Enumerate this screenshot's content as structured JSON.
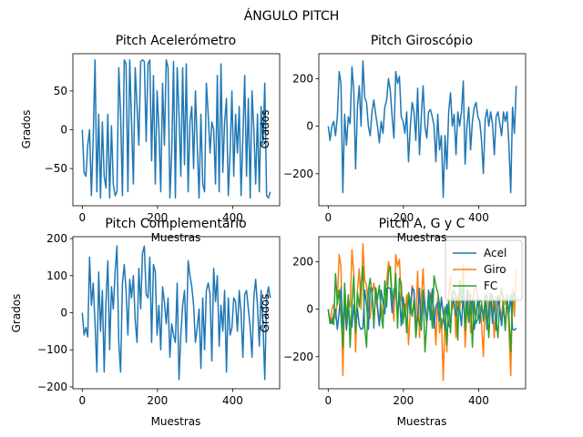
{
  "figure": {
    "suptitle": "ÁNGULO PITCH"
  },
  "colors": {
    "acel": "#1f77b4",
    "giro": "#ff7f0e",
    "fc": "#2ca02c"
  },
  "chart_data": [
    {
      "type": "line",
      "title": "Pitch Acelerómetro",
      "xlabel": "Muestras",
      "ylabel": "Grados",
      "xlim": [
        -25,
        525
      ],
      "ylim": [
        -98,
        98
      ],
      "xticks": [
        0,
        200,
        400
      ],
      "yticks": [
        -50,
        0,
        50
      ],
      "series": [
        {
          "color": "#1f77b4",
          "y": [
            0,
            -55,
            -60,
            -20,
            0,
            -85,
            -10,
            90,
            -80,
            20,
            -88,
            10,
            -60,
            -75,
            20,
            -88,
            5,
            -70,
            -85,
            -80,
            80,
            20,
            -85,
            90,
            85,
            -80,
            90,
            10,
            -70,
            80,
            30,
            -20,
            88,
            90,
            88,
            -15,
            85,
            90,
            -40,
            70,
            -70,
            50,
            0,
            -80,
            60,
            -20,
            90,
            80,
            -88,
            -30,
            88,
            -88,
            80,
            20,
            -60,
            80,
            -45,
            85,
            -80,
            10,
            30,
            -50,
            50,
            -20,
            -88,
            20,
            -70,
            -80,
            60,
            20,
            -30,
            10,
            0,
            -70,
            70,
            -80,
            85,
            -55,
            10,
            40,
            -85,
            -30,
            50,
            -60,
            20,
            -30,
            30,
            -85,
            -10,
            70,
            -60,
            40,
            -88,
            50,
            0,
            -70,
            20,
            -80,
            30,
            -20,
            60,
            -85,
            -88,
            -80
          ]
        }
      ]
    },
    {
      "type": "line",
      "title": "Pitch Giroscópio",
      "xlabel": "Muestras",
      "ylabel": "Grados",
      "xlim": [
        -25,
        525
      ],
      "ylim": [
        -335,
        305
      ],
      "xticks": [
        0,
        200,
        400
      ],
      "yticks": [
        -200,
        0,
        200
      ],
      "series": [
        {
          "color": "#1f77b4",
          "y": [
            0,
            -60,
            0,
            20,
            -40,
            40,
            230,
            180,
            -280,
            50,
            -80,
            40,
            10,
            250,
            150,
            -180,
            80,
            170,
            0,
            275,
            120,
            100,
            0,
            -40,
            60,
            110,
            50,
            0,
            -70,
            20,
            -30,
            80,
            110,
            200,
            150,
            40,
            -50,
            230,
            180,
            210,
            40,
            20,
            -30,
            60,
            -150,
            0,
            100,
            60,
            -60,
            160,
            -120,
            40,
            170,
            0,
            -50,
            60,
            70,
            40,
            0,
            -150,
            50,
            -100,
            -40,
            -300,
            -40,
            -180,
            60,
            140,
            0,
            50,
            -120,
            60,
            0,
            60,
            190,
            -160,
            0,
            80,
            -100,
            20,
            80,
            100,
            40,
            20,
            -60,
            -200,
            30,
            70,
            0,
            60,
            10,
            -120,
            40,
            60,
            10,
            -40,
            60,
            20,
            60,
            -80,
            -280,
            80,
            -30,
            170
          ]
        }
      ]
    },
    {
      "type": "line",
      "title": "Pitch Complementario",
      "xlabel": "Muestras",
      "ylabel": "Grados",
      "xlim": [
        -25,
        525
      ],
      "ylim": [
        -205,
        205
      ],
      "xticks": [
        0,
        200,
        400
      ],
      "yticks": [
        -200,
        -100,
        0,
        100,
        200
      ],
      "series": [
        {
          "color": "#1f77b4",
          "y": [
            0,
            -60,
            -40,
            -65,
            150,
            20,
            80,
            -30,
            -160,
            110,
            -50,
            60,
            -160,
            30,
            140,
            -100,
            70,
            10,
            110,
            180,
            -80,
            -160,
            80,
            130,
            60,
            -60,
            90,
            40,
            100,
            -20,
            -80,
            120,
            10,
            160,
            180,
            50,
            40,
            150,
            -80,
            130,
            110,
            -60,
            20,
            -100,
            70,
            30,
            -30,
            40,
            -120,
            -30,
            -60,
            -80,
            80,
            -180,
            -60,
            20,
            60,
            -80,
            140,
            100,
            70,
            20,
            -80,
            -40,
            10,
            -150,
            40,
            -100,
            60,
            80,
            50,
            -130,
            120,
            30,
            100,
            -90,
            20,
            -50,
            60,
            -160,
            40,
            -60,
            -40,
            40,
            30,
            -50,
            60,
            0,
            -120,
            50,
            60,
            10,
            -40,
            -120,
            40,
            90,
            20,
            -90,
            60,
            -30,
            -180,
            40,
            70,
            40
          ]
        }
      ]
    },
    {
      "type": "line",
      "title": "Pitch A, G y C",
      "xlabel": "Muestras",
      "ylabel": "Grados",
      "xlim": [
        -25,
        525
      ],
      "ylim": [
        -335,
        305
      ],
      "xticks": [
        0,
        200,
        400
      ],
      "yticks": [
        -200,
        0,
        200
      ],
      "legend": "top-right",
      "series": [
        {
          "name": "Giro",
          "color": "#ff7f0e",
          "y": [
            0,
            -60,
            0,
            20,
            -40,
            40,
            230,
            180,
            -280,
            50,
            -80,
            40,
            10,
            250,
            150,
            -180,
            80,
            170,
            0,
            275,
            120,
            100,
            0,
            -40,
            60,
            110,
            50,
            0,
            -70,
            20,
            -30,
            80,
            110,
            200,
            150,
            40,
            -50,
            230,
            180,
            210,
            40,
            20,
            -30,
            60,
            -150,
            0,
            100,
            60,
            -60,
            160,
            -120,
            40,
            170,
            0,
            -50,
            60,
            70,
            40,
            0,
            -150,
            50,
            -100,
            -40,
            -300,
            -40,
            -180,
            60,
            140,
            0,
            50,
            -120,
            60,
            0,
            60,
            190,
            -160,
            0,
            80,
            -100,
            20,
            80,
            100,
            40,
            20,
            -60,
            -200,
            30,
            70,
            0,
            60,
            10,
            -120,
            40,
            60,
            10,
            -40,
            60,
            20,
            60,
            -80,
            -280,
            80,
            -30,
            170
          ]
        },
        {
          "name": "Acel",
          "color": "#1f77b4",
          "y": [
            0,
            -55,
            -60,
            -20,
            0,
            -85,
            -10,
            90,
            -80,
            20,
            -88,
            10,
            -60,
            -75,
            20,
            -88,
            5,
            -70,
            -85,
            -80,
            80,
            20,
            -85,
            90,
            85,
            -80,
            90,
            10,
            -70,
            80,
            30,
            -20,
            88,
            90,
            88,
            -15,
            85,
            90,
            -40,
            70,
            -70,
            50,
            0,
            -80,
            60,
            -20,
            90,
            80,
            -88,
            -30,
            88,
            -88,
            80,
            20,
            -60,
            80,
            -45,
            85,
            -80,
            10,
            30,
            -50,
            50,
            -20,
            -88,
            20,
            -70,
            -80,
            60,
            20,
            -30,
            10,
            0,
            -70,
            70,
            -80,
            85,
            -55,
            10,
            40,
            -85,
            -30,
            50,
            -60,
            20,
            -30,
            30,
            -85,
            -10,
            70,
            -60,
            40,
            -88,
            50,
            0,
            -70,
            20,
            -80,
            30,
            -20,
            60,
            -85,
            -88,
            -80
          ]
        },
        {
          "name": "FC",
          "color": "#2ca02c",
          "y": [
            0,
            -60,
            -40,
            -65,
            150,
            20,
            80,
            -30,
            -160,
            110,
            -50,
            60,
            -160,
            30,
            140,
            -100,
            70,
            10,
            110,
            180,
            -80,
            -160,
            80,
            130,
            60,
            -60,
            90,
            40,
            100,
            -20,
            -80,
            120,
            10,
            160,
            180,
            50,
            40,
            150,
            -80,
            130,
            110,
            -60,
            20,
            -100,
            70,
            30,
            -30,
            40,
            -120,
            -30,
            -60,
            -80,
            80,
            -180,
            -60,
            20,
            60,
            -80,
            140,
            100,
            70,
            20,
            -80,
            -40,
            10,
            -150,
            40,
            -100,
            60,
            80,
            50,
            -130,
            120,
            30,
            100,
            -90,
            20,
            -50,
            60,
            -160,
            40,
            -60,
            -40,
            40,
            30,
            -50,
            60,
            0,
            -120,
            50,
            60,
            10,
            -40,
            -120,
            40,
            90,
            20,
            -90,
            60,
            -30,
            -180,
            40,
            70,
            40
          ]
        }
      ],
      "legend_order": [
        "Acel",
        "Giro",
        "FC"
      ]
    }
  ]
}
